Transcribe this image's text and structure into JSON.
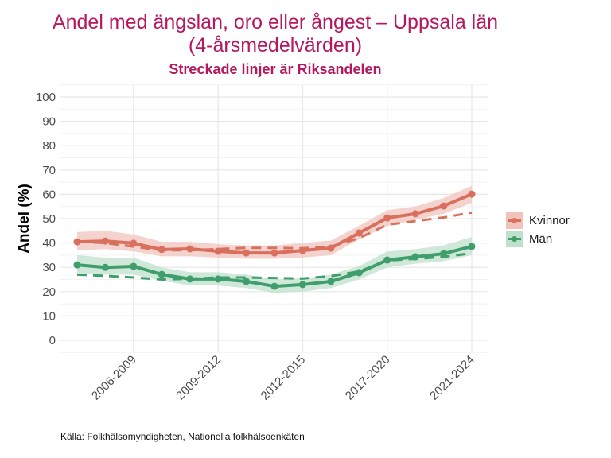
{
  "chart_data": {
    "type": "line",
    "title": "Andel med ängslan, oro eller ångest – Uppsala län\n(4-årsmedelvärden)",
    "title_line1": "Andel med ängslan, oro eller ångest – Uppsala län",
    "title_line2": "(4-årsmedelvärden)",
    "subtitle": "Streckade linjer är Riksandelen",
    "ylabel": "Andel (%)",
    "xlabel": "",
    "ylim": [
      0,
      100
    ],
    "yticks": [
      "0",
      "10",
      "20",
      "30",
      "40",
      "50",
      "60",
      "70",
      "80",
      "90",
      "100"
    ],
    "ytick_values": [
      0,
      10,
      20,
      30,
      40,
      50,
      60,
      70,
      80,
      90,
      100
    ],
    "x_count": 15,
    "xtick_labels": [
      "2006-2009",
      "2009-2012",
      "2012-2015",
      "2017-2020",
      "2021-2024"
    ],
    "xtick_index": [
      2,
      5,
      8,
      11,
      14
    ],
    "grid": true,
    "legend_position": "right",
    "series": [
      {
        "name": "Kvinnor",
        "color": "#d9705e",
        "band_color": "#f0c4bd",
        "values": [
          40.5,
          40.8,
          39.9,
          37.3,
          37.6,
          36.6,
          35.9,
          35.9,
          36.9,
          37.9,
          44.1,
          50.3,
          52.0,
          55.2,
          60.1
        ],
        "lower": [
          37,
          37.5,
          36.5,
          34.5,
          34.5,
          34,
          33.5,
          33.5,
          34,
          35,
          41.5,
          47,
          49.5,
          52,
          56.5
        ],
        "upper": [
          44.5,
          45,
          43.5,
          40.5,
          40.5,
          39.5,
          39,
          39,
          40,
          41,
          47,
          53.5,
          55,
          58.5,
          63.5
        ],
        "national": [
          40.5,
          40,
          38.5,
          37,
          37,
          37.5,
          38,
          38,
          37.8,
          38.5,
          42,
          47.5,
          49,
          50.5,
          52.5
        ]
      },
      {
        "name": "Män",
        "color": "#3f9e6b",
        "band_color": "#bfe0cc",
        "values": [
          31.0,
          30.0,
          30.4,
          27.1,
          25.2,
          25.2,
          24.2,
          22.2,
          22.9,
          24.2,
          27.8,
          33.0,
          34.3,
          35.6,
          38.6
        ],
        "lower": [
          27.5,
          27,
          27,
          24.5,
          22.5,
          22.5,
          21.5,
          19.5,
          20,
          21.5,
          25,
          30,
          31.5,
          32.5,
          35
        ],
        "upper": [
          35,
          34,
          34,
          30,
          28,
          28,
          27,
          25,
          25.5,
          27,
          30.5,
          36.5,
          37.5,
          39,
          42.5
        ],
        "national": [
          27,
          26.5,
          25.8,
          25,
          25.3,
          25.8,
          25.8,
          25.6,
          25.4,
          26.4,
          28.3,
          32.8,
          33.5,
          34.3,
          35.8
        ]
      }
    ]
  },
  "caption": "Källa: Folkhälsomyndigheten, Nationella folkhälsoenkäten",
  "legend": {
    "items": [
      "Kvinnor",
      "Män"
    ]
  }
}
